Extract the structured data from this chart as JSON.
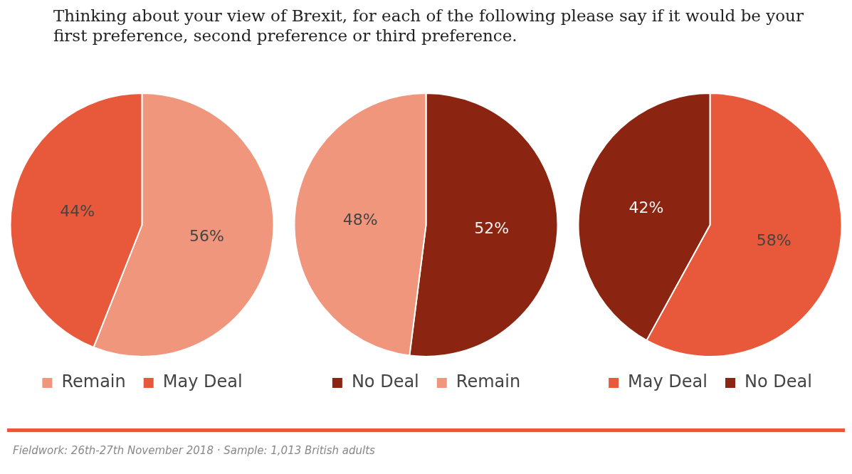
{
  "chart_data": [
    {
      "type": "pie",
      "title": "Thinking about your view of Brexit, for each of the following please say if it would be your first preference, second preference or third preference.",
      "categories": [
        "Remain",
        "May Deal"
      ],
      "values": [
        56,
        44
      ],
      "value_labels": [
        "56%",
        "44%"
      ],
      "colors": [
        "#f0967c",
        "#e8583a"
      ],
      "legend": "bottom"
    },
    {
      "type": "pie",
      "categories": [
        "No Deal",
        "Remain"
      ],
      "values": [
        52,
        48
      ],
      "value_labels": [
        "52%",
        "48%"
      ],
      "colors": [
        "#8b2511",
        "#f0967c"
      ],
      "legend": "bottom"
    },
    {
      "type": "pie",
      "categories": [
        "May Deal",
        "No Deal"
      ],
      "values": [
        58,
        42
      ],
      "value_labels": [
        "58%",
        "42%"
      ],
      "colors": [
        "#e8583a",
        "#8b2511"
      ],
      "legend": "bottom",
      "annotations": [
        "Fieldwork: 26th-27th November 2018 · Sample: 1,013 British adults"
      ]
    }
  ]
}
